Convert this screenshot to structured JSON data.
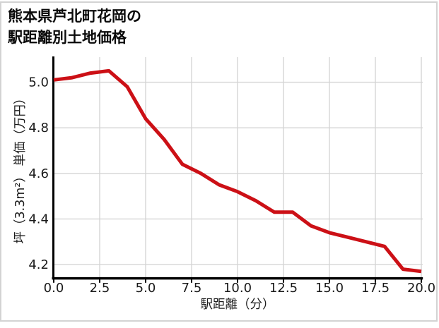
{
  "header": {
    "title_line1": "熊本県芦北町花岡の",
    "title_line2": "駅距離別土地価格"
  },
  "chart_data": {
    "type": "line",
    "title": "熊本県芦北町花岡の駅距離別土地価格",
    "xlabel": "駅距離（分）",
    "ylabel": "坪（3.3m²） 単価（万円）",
    "x": [
      0,
      1,
      2,
      3,
      4,
      5,
      6,
      7,
      8,
      9,
      10,
      11,
      12,
      13,
      14,
      15,
      16,
      17,
      18,
      19,
      20
    ],
    "y": [
      5.01,
      5.02,
      5.04,
      5.05,
      4.98,
      4.84,
      4.75,
      4.64,
      4.6,
      4.55,
      4.52,
      4.48,
      4.43,
      4.43,
      4.37,
      4.34,
      4.32,
      4.3,
      4.28,
      4.18,
      4.17
    ],
    "x_ticks": [
      0,
      2.5,
      5,
      7.5,
      10,
      12.5,
      15,
      17.5,
      20
    ],
    "x_tick_labels": [
      "0.0",
      "2.5",
      "5.0",
      "7.5",
      "10.0",
      "12.5",
      "15.0",
      "17.5",
      "20.0"
    ],
    "y_ticks": [
      5.0,
      4.8,
      4.6,
      4.4,
      4.2
    ],
    "y_tick_labels": [
      "5.0",
      "4.8",
      "4.6",
      "4.4",
      "4.2"
    ],
    "xlim": [
      0,
      20
    ],
    "ylim": [
      4.14,
      5.11
    ],
    "grid": true,
    "legend": "none",
    "colors": {
      "line": "#cc1016",
      "axis": "#000000",
      "grid": "#d5d5d5",
      "text": "#1a1a1a",
      "border": "#d3d3d3",
      "background": "#ffffff"
    }
  }
}
